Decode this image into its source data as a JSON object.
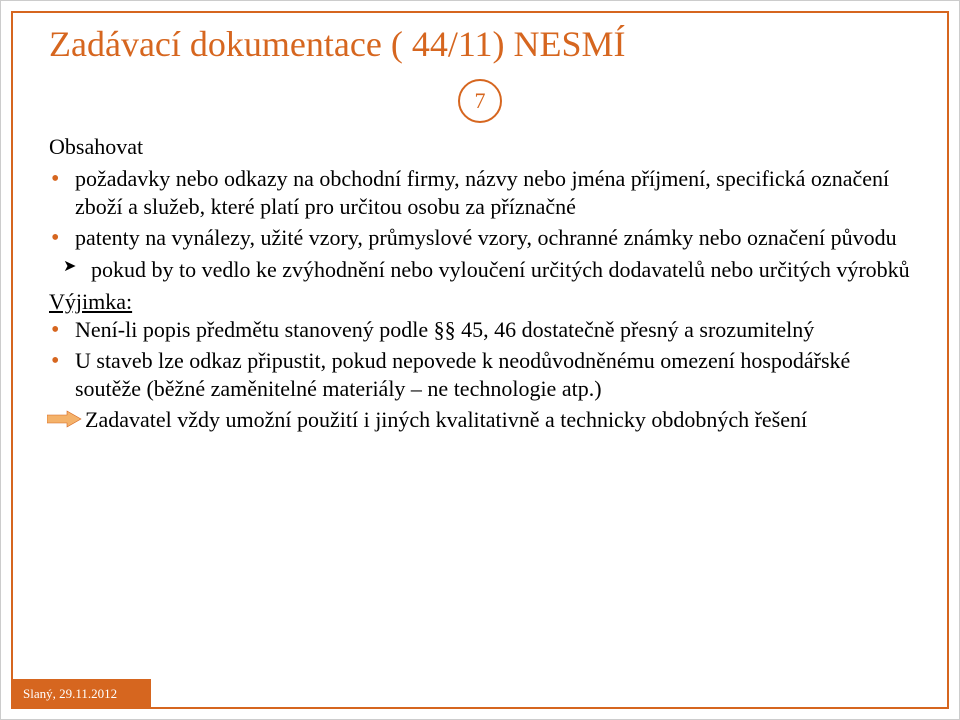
{
  "colors": {
    "accent": "#d6661f",
    "bullet": "#d6661f",
    "text": "#000000",
    "badge_border": "#d6661f",
    "footer_bg": "#d6661f",
    "footer_text": "#ffffff",
    "frame_border": "#d6661f",
    "arrow_fill": "#f4b26a"
  },
  "title": "Zadávací dokumentace ( 44/11) NESMÍ",
  "page_number": "7",
  "section_label": "Obsahovat",
  "bullets": [
    "požadavky nebo odkazy na obchodní firmy, názvy nebo jména příjmení, specifická označení zboží a služeb, které platí pro určitou osobu za příznačné",
    "patenty na vynálezy, užité vzory, průmyslové vzory, ochranné známky nebo označení původu"
  ],
  "sub_bullets": [
    "pokud by to vedlo ke zvýhodnění nebo vyloučení určitých dodavatelů nebo určitých výrobků"
  ],
  "exception_label": "Výjimka:",
  "exception_bullets": [
    "Není-li popis předmětu stanovený podle §§ 45, 46 dostatečně přesný a srozumitelný",
    "U staveb lze odkaz připustit, pokud nepovede k neodůvodněnému omezení hospodářské soutěže (běžné zaměnitelné materiály – ne technologie atp.)"
  ],
  "arrow_note": "Zadavatel vždy umožní použití i jiných kvalitativně a technicky obdobných řešení",
  "footer": "Slaný, 29.11.2012"
}
